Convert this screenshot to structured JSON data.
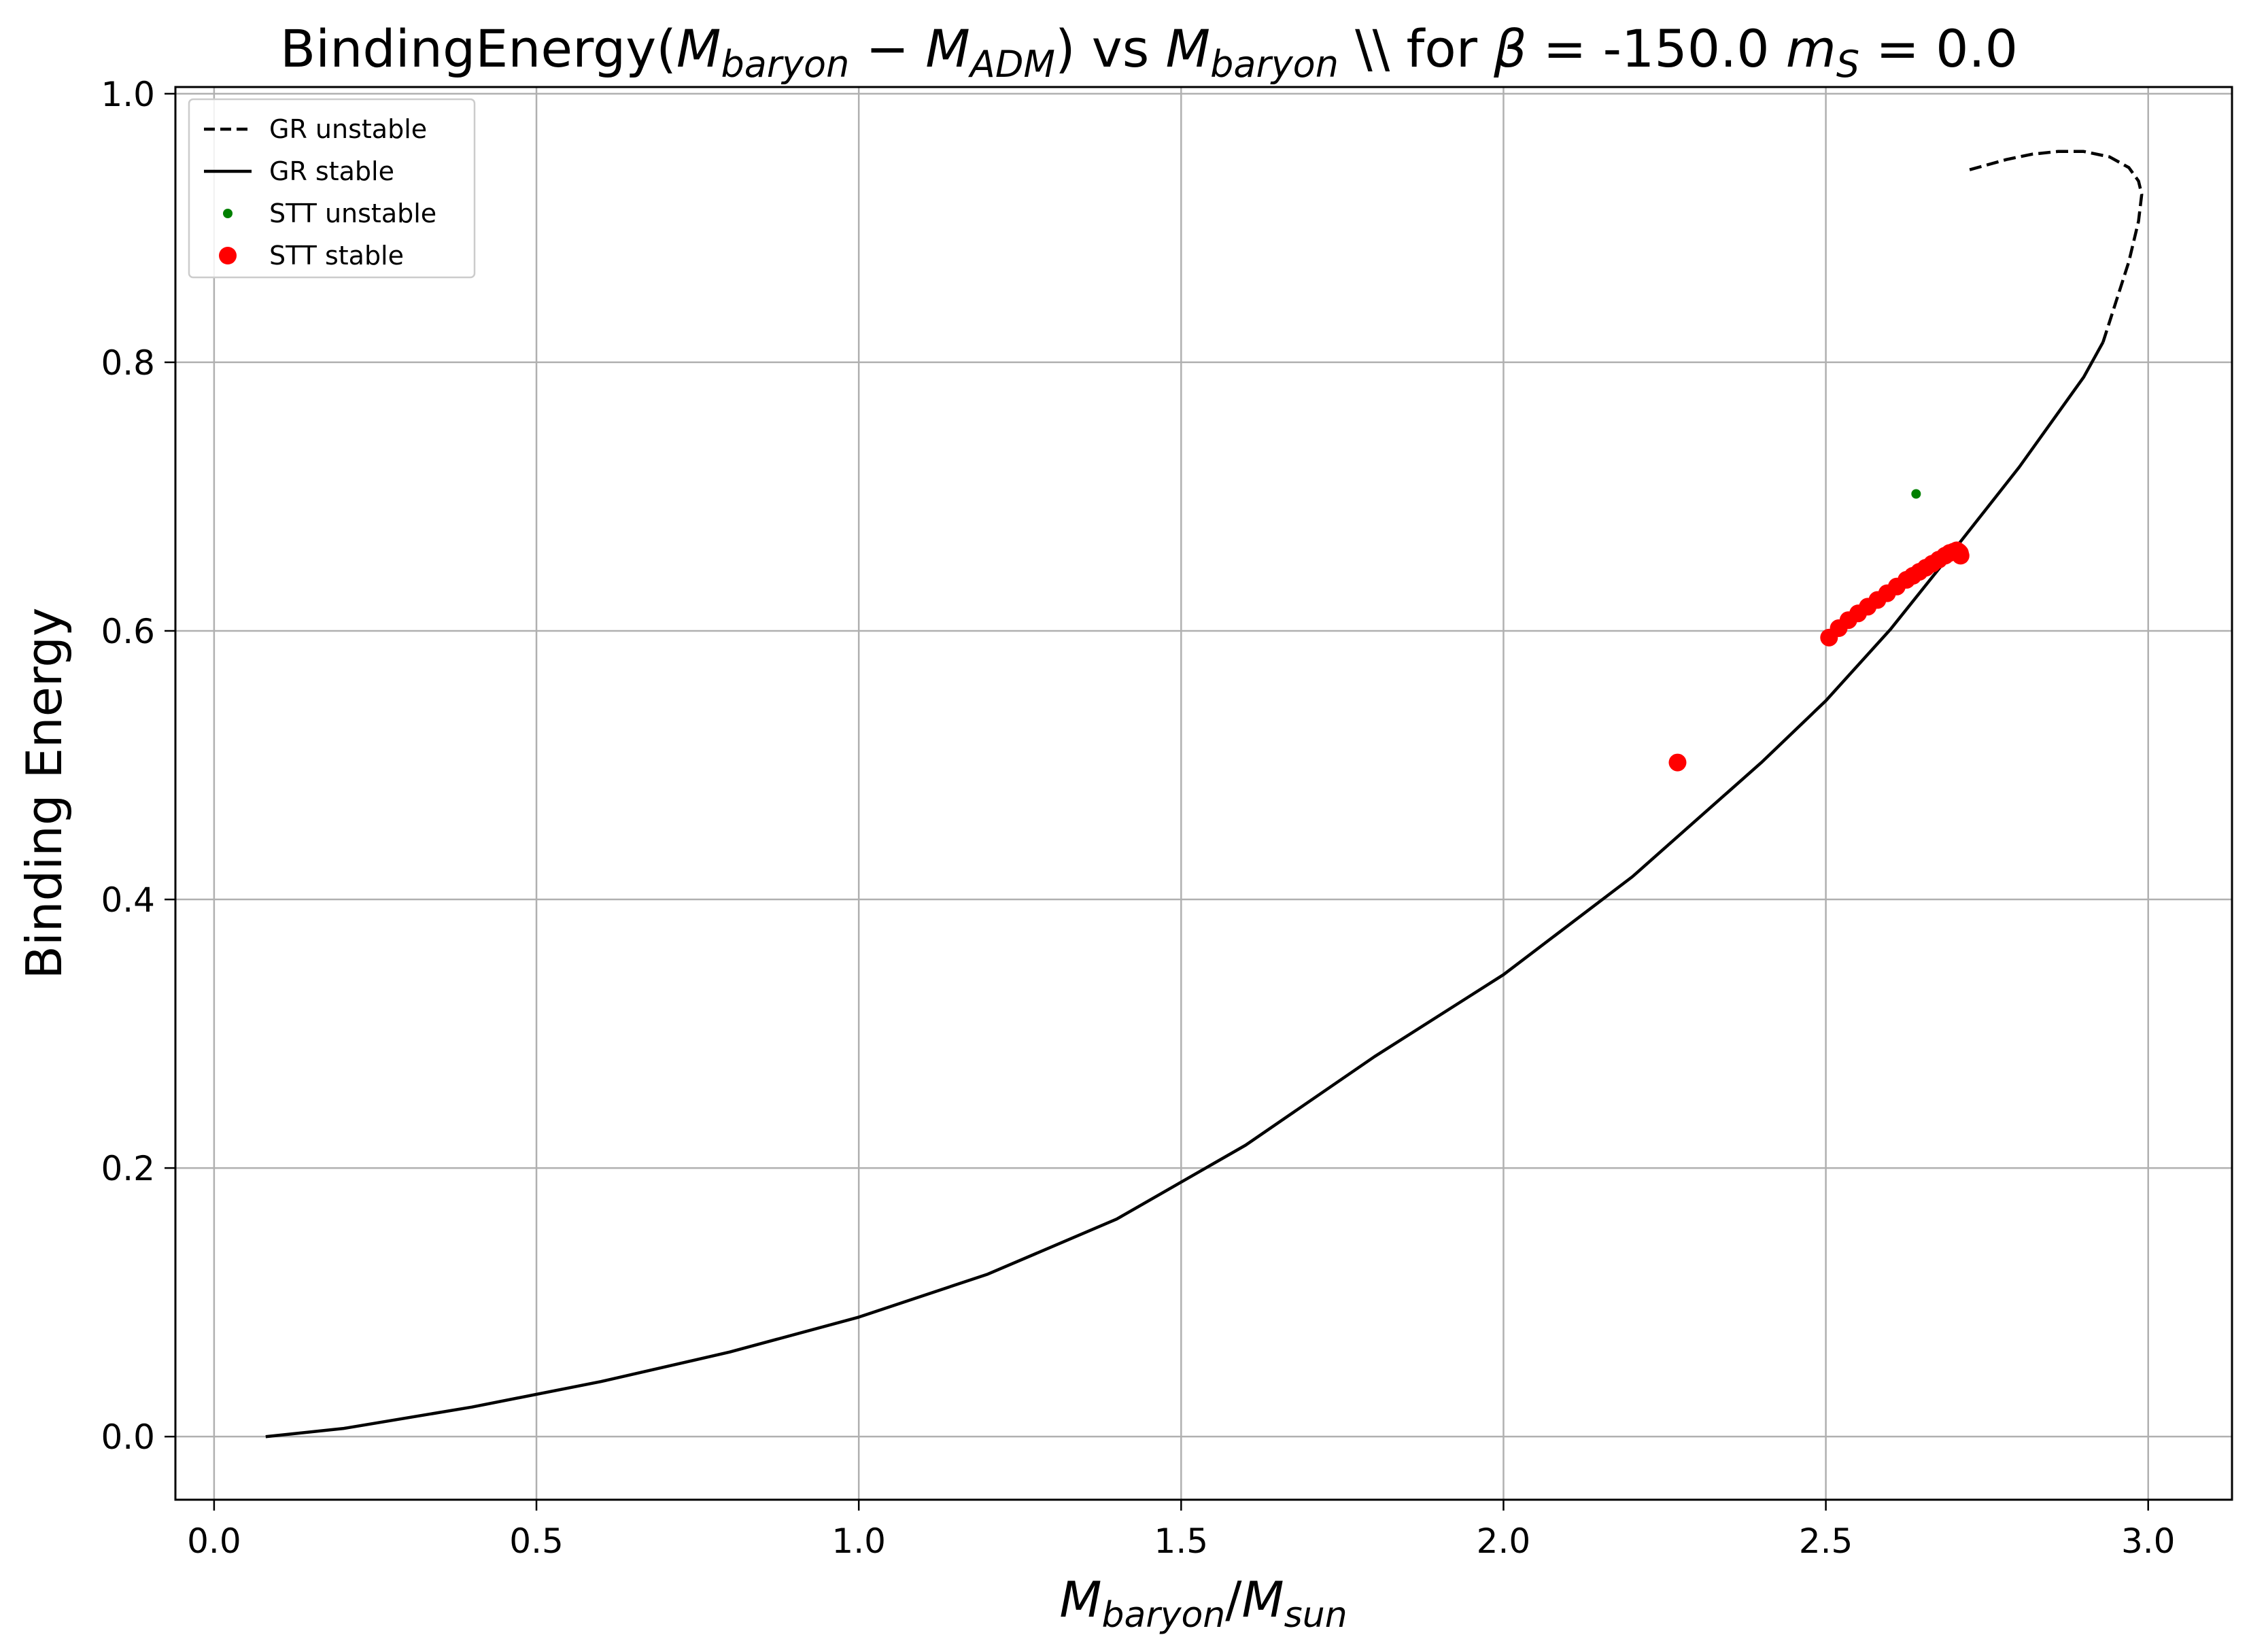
{
  "chart_data": {
    "type": "line",
    "title_parts": [
      {
        "t": "BindingEnergy(",
        "i": false
      },
      {
        "t": "M",
        "i": true
      },
      {
        "t": "baryon",
        "i": true,
        "sub": true
      },
      {
        "t": " − ",
        "i": false
      },
      {
        "t": "M",
        "i": true
      },
      {
        "t": "ADM",
        "i": true,
        "sub": true
      },
      {
        "t": ") vs ",
        "i": false
      },
      {
        "t": "M",
        "i": true
      },
      {
        "t": "baryon",
        "i": true,
        "sub": true
      },
      {
        "t": " \\\\ for ",
        "i": false
      },
      {
        "t": "β",
        "i": true
      },
      {
        "t": " = -150.0 ",
        "i": false
      },
      {
        "t": "m",
        "i": true
      },
      {
        "t": "S",
        "i": true,
        "sub": true
      },
      {
        "t": " = 0.0",
        "i": false
      }
    ],
    "xlabel_parts": [
      {
        "t": "M",
        "i": true
      },
      {
        "t": "baryon",
        "i": true,
        "sub": true
      },
      {
        "t": "/",
        "i": false
      },
      {
        "t": "M",
        "i": true
      },
      {
        "t": "sun",
        "i": true,
        "sub": true
      }
    ],
    "ylabel": "Binding Energy",
    "xlim": [
      -0.06,
      3.13
    ],
    "ylim": [
      -0.047,
      1.005
    ],
    "xticks": [
      0.0,
      0.5,
      1.0,
      1.5,
      2.0,
      2.5,
      3.0
    ],
    "xtick_labels": [
      "0.0",
      "0.5",
      "1.0",
      "1.5",
      "2.0",
      "2.5",
      "3.0"
    ],
    "yticks": [
      0.0,
      0.2,
      0.4,
      0.6,
      0.8,
      1.0
    ],
    "ytick_labels": [
      "0.0",
      "0.2",
      "0.4",
      "0.6",
      "0.8",
      "1.0"
    ],
    "grid": true,
    "legend_position": "top-left",
    "series": [
      {
        "name": "GR unstable",
        "style": "dashed",
        "color": "#000000",
        "x": [
          2.93,
          2.95,
          2.97,
          2.985,
          2.99,
          2.985,
          2.97,
          2.94,
          2.9,
          2.86,
          2.82,
          2.78,
          2.72
        ],
        "y": [
          0.815,
          0.845,
          0.875,
          0.905,
          0.925,
          0.935,
          0.945,
          0.953,
          0.957,
          0.957,
          0.955,
          0.951,
          0.943
        ]
      },
      {
        "name": "GR stable",
        "style": "solid",
        "color": "#000000",
        "x": [
          0.08,
          0.2,
          0.4,
          0.6,
          0.8,
          1.0,
          1.2,
          1.4,
          1.6,
          1.8,
          2.0,
          2.2,
          2.4,
          2.5,
          2.6,
          2.7,
          2.8,
          2.9,
          2.93
        ],
        "y": [
          0.0,
          0.006,
          0.022,
          0.041,
          0.063,
          0.089,
          0.121,
          0.162,
          0.217,
          0.283,
          0.344,
          0.417,
          0.502,
          0.548,
          0.601,
          0.661,
          0.722,
          0.789,
          0.815
        ]
      },
      {
        "name": "STT unstable",
        "style": "marker-small",
        "color": "#008000",
        "x": [
          2.64
        ],
        "y": [
          0.702
        ]
      },
      {
        "name": "STT stable",
        "style": "marker-large",
        "color": "#ff0000",
        "x": [
          2.27,
          2.505,
          2.52,
          2.535,
          2.55,
          2.565,
          2.58,
          2.595,
          2.61,
          2.625,
          2.635,
          2.645,
          2.655,
          2.665,
          2.675,
          2.685,
          2.692,
          2.698,
          2.703,
          2.706,
          2.708,
          2.709
        ],
        "y": [
          0.502,
          0.595,
          0.602,
          0.608,
          0.613,
          0.618,
          0.623,
          0.628,
          0.633,
          0.638,
          0.641,
          0.644,
          0.647,
          0.65,
          0.653,
          0.656,
          0.658,
          0.659,
          0.66,
          0.659,
          0.658,
          0.656
        ]
      }
    ]
  }
}
